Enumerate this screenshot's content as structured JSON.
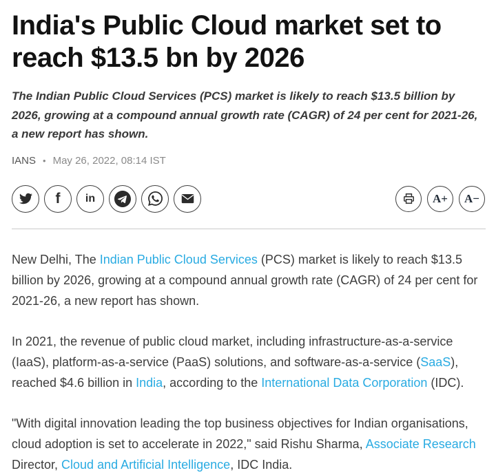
{
  "article": {
    "title": "India's Public Cloud market set to reach $13.5 bn by 2026",
    "subtitle": "The Indian Public Cloud Services (PCS) market is likely to reach $13.5 billion by 2026, growing at a compound annual growth rate (CAGR) of 24 per cent for 2021-26, a new report has shown.",
    "byline": {
      "source": "IANS",
      "separator": "•",
      "date": "May 26, 2022, 08:14 IST"
    }
  },
  "share": {
    "icons": [
      "twitter",
      "facebook",
      "linkedin",
      "telegram",
      "whatsapp",
      "email"
    ]
  },
  "tools": {
    "print_icon": "printer-icon",
    "font_increase_label": "A+",
    "font_decrease_label": "A−"
  },
  "body": {
    "paragraphs": [
      {
        "segments": [
          {
            "text": "New Delhi, The ",
            "link": false
          },
          {
            "text": "Indian Public Cloud Services",
            "link": true
          },
          {
            "text": " (PCS) market is likely to reach $13.5 billion by 2026, growing at a compound annual growth rate (CAGR) of 24 per cent for 2021-26, a new report has shown.",
            "link": false
          }
        ]
      },
      {
        "segments": [
          {
            "text": "In 2021, the revenue of public cloud market, including infrastructure-as-a-service (IaaS), platform-as-a-service (PaaS) solutions, and software-as-a-service (",
            "link": false
          },
          {
            "text": "SaaS",
            "link": true
          },
          {
            "text": "), reached $4.6 billion in ",
            "link": false
          },
          {
            "text": "India",
            "link": true
          },
          {
            "text": ", according to the ",
            "link": false
          },
          {
            "text": "International Data Corporation",
            "link": true
          },
          {
            "text": " (IDC).",
            "link": false
          }
        ]
      },
      {
        "segments": [
          {
            "text": "\"With digital innovation leading the top business objectives for Indian organisations, cloud adoption is set to accelerate in 2022,\" said Rishu Sharma, ",
            "link": false
          },
          {
            "text": "Associate Research",
            "link": true
          },
          {
            "text": " Director, ",
            "link": false
          },
          {
            "text": "Cloud and Artificial Intelligence",
            "link": true
          },
          {
            "text": ", IDC India.",
            "link": false
          }
        ]
      }
    ]
  },
  "colors": {
    "headline": "#121212",
    "subtitle": "#3a3a3a",
    "body_text": "#3d3d3d",
    "link": "#29abe2",
    "divider": "#c9c9c9",
    "byline_source": "#555555",
    "byline_date": "#8a8a8a",
    "icon": "#2b2b2b"
  }
}
